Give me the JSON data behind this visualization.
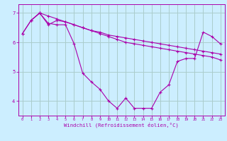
{
  "background_color": "#cceeff",
  "line_color": "#aa00aa",
  "grid_color": "#aacccc",
  "xlabel": "Windchill (Refroidissement éolien,°C)",
  "tick_color": "#aa00aa",
  "ylim": [
    3.5,
    7.3
  ],
  "xlim": [
    -0.5,
    23.5
  ],
  "yticks": [
    4,
    5,
    6,
    7
  ],
  "xticks": [
    0,
    1,
    2,
    3,
    4,
    5,
    6,
    7,
    8,
    9,
    10,
    11,
    12,
    13,
    14,
    15,
    16,
    17,
    18,
    19,
    20,
    21,
    22,
    23
  ],
  "line1_x": [
    0,
    1,
    2,
    3,
    4,
    5,
    6,
    7,
    8,
    9,
    10,
    11,
    12,
    13,
    14,
    15,
    16,
    17,
    18,
    19,
    20,
    21,
    22,
    23
  ],
  "line1_y": [
    6.3,
    6.75,
    7.0,
    6.9,
    6.8,
    6.7,
    6.6,
    6.5,
    6.4,
    6.35,
    6.25,
    6.2,
    6.15,
    6.1,
    6.05,
    6.0,
    5.95,
    5.9,
    5.85,
    5.8,
    5.75,
    5.7,
    5.65,
    5.6
  ],
  "line2_x": [
    1,
    2,
    3,
    4,
    5,
    6,
    7,
    8,
    9,
    10,
    11,
    12,
    13,
    14,
    15,
    16,
    17,
    18,
    19,
    20,
    21,
    22,
    23
  ],
  "line2_y": [
    6.75,
    7.0,
    6.6,
    6.75,
    6.7,
    6.6,
    6.5,
    6.4,
    6.3,
    6.2,
    6.1,
    6.0,
    5.95,
    5.9,
    5.85,
    5.8,
    5.75,
    5.7,
    5.65,
    5.6,
    5.55,
    5.5,
    5.4
  ],
  "line3_x": [
    0,
    1,
    2,
    3,
    4,
    5,
    6,
    7,
    8,
    9,
    10,
    11,
    12,
    13,
    14,
    15,
    16,
    17,
    18,
    19,
    20,
    21,
    22,
    23
  ],
  "line3_y": [
    6.3,
    6.75,
    7.0,
    6.65,
    6.6,
    6.6,
    5.95,
    4.95,
    4.65,
    4.4,
    4.0,
    3.75,
    4.1,
    3.75,
    3.75,
    3.75,
    4.3,
    4.55,
    5.35,
    5.45,
    5.45,
    6.35,
    6.2,
    5.95
  ]
}
